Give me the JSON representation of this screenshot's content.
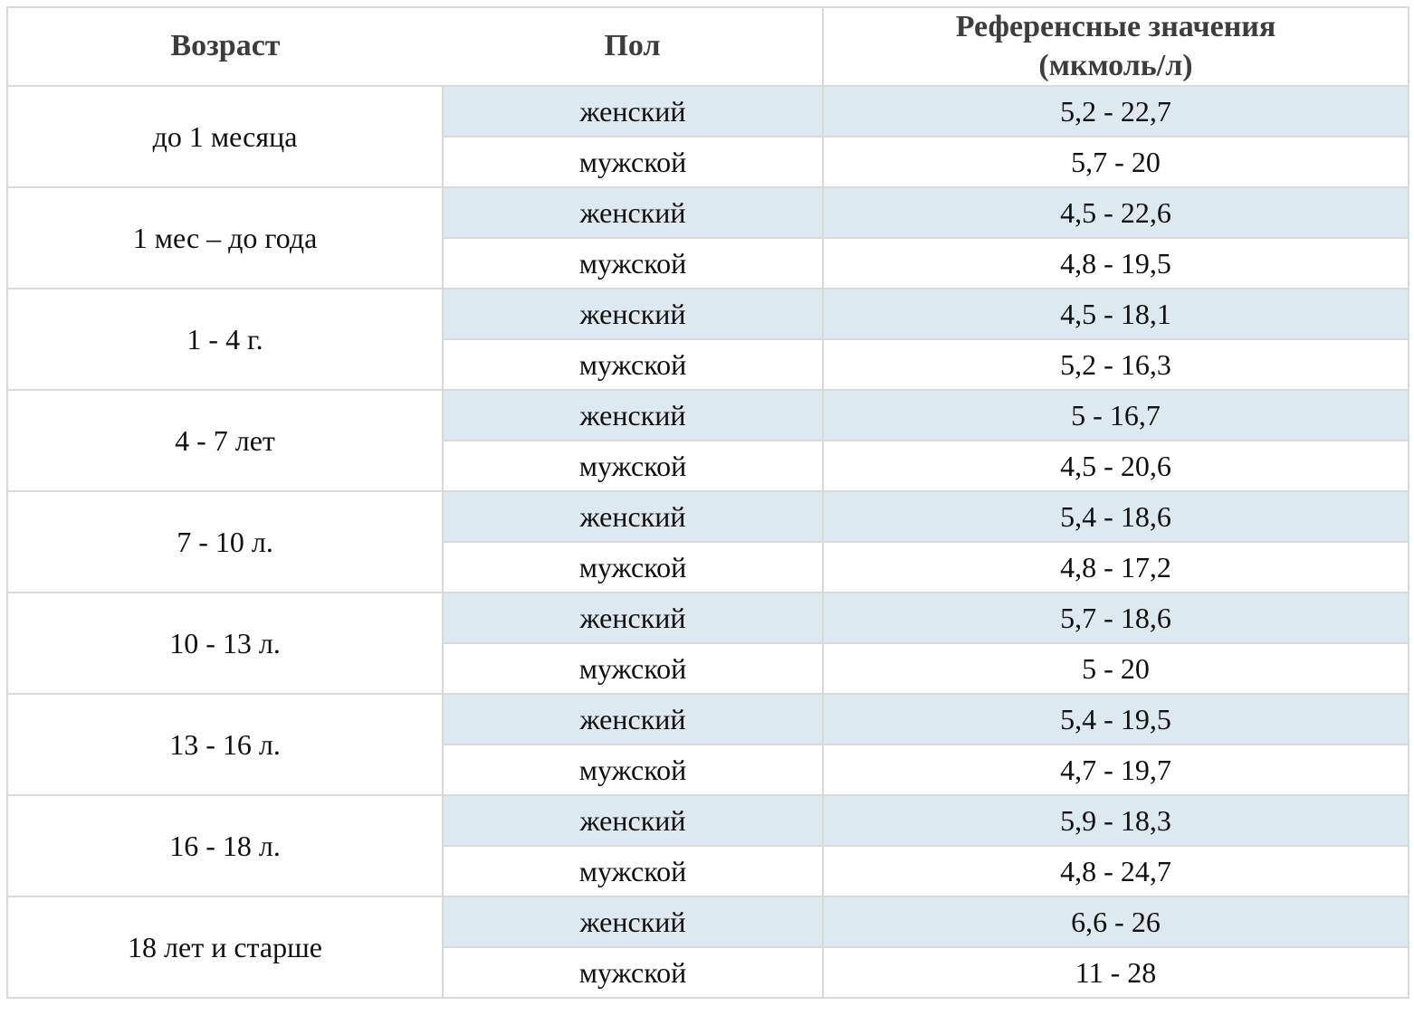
{
  "table": {
    "headers": {
      "age": "Возраст",
      "gender": "Пол",
      "values": "Референсные значения\n(мкмоль/л)"
    },
    "gender_labels": {
      "female": "женский",
      "male": "мужской"
    },
    "unit": "мкмоль/л",
    "groups": [
      {
        "age": "до 1 месяца",
        "female": "5,2 - 22,7",
        "male": "5,7 - 20"
      },
      {
        "age": "1 мес – до года",
        "female": "4,5 - 22,6",
        "male": "4,8 - 19,5"
      },
      {
        "age": "1 - 4 г.",
        "female": "4,5 - 18,1",
        "male": "5,2 - 16,3"
      },
      {
        "age": "4 - 7 лет",
        "female": "5 - 16,7",
        "male": "4,5 - 20,6"
      },
      {
        "age": "7 - 10 л.",
        "female": "5,4 - 18,6",
        "male": "4,8 - 17,2"
      },
      {
        "age": "10 - 13 л.",
        "female": "5,7 - 18,6",
        "male": "5 - 20"
      },
      {
        "age": "13 - 16 л.",
        "female": "5,4 - 19,5",
        "male": "4,7 - 19,7"
      },
      {
        "age": "16 - 18 л.",
        "female": "5,9 - 18,3",
        "male": "4,8 - 24,7"
      },
      {
        "age": "18 лет и старше",
        "female": "6,6 - 26",
        "male": "11 - 28"
      }
    ],
    "colors": {
      "row_highlight": "#dde9f1",
      "border": "#d9d9d9",
      "header_text": "#3d3d3d",
      "body_text": "#101010"
    }
  }
}
